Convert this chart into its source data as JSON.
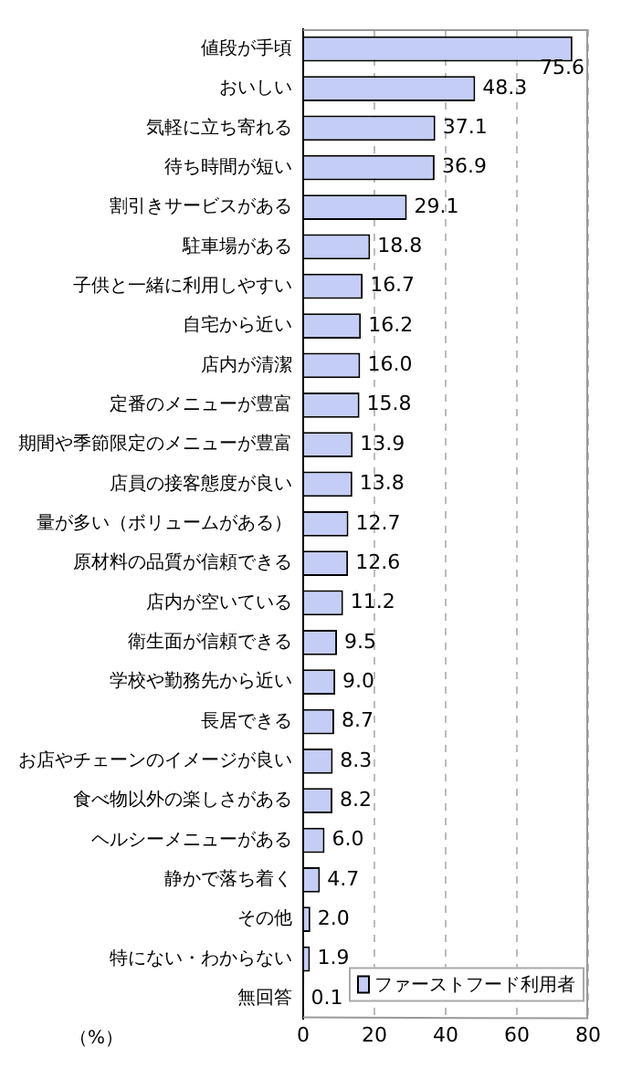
{
  "chart_data": {
    "type": "bar",
    "orientation": "horizontal",
    "xlabel": "（%）",
    "categories": [
      "値段が手頃",
      "おいしい",
      "気軽に立ち寄れる",
      "待ち時間が短い",
      "割引きサービスがある",
      "駐車場がある",
      "子供と一緒に利用しやすい",
      "自宅から近い",
      "店内が清潔",
      "定番のメニューが豊富",
      "期間や季節限定のメニューが豊富",
      "店員の接客態度が良い",
      "量が多い（ボリュームがある）",
      "原材料の品質が信頼できる",
      "店内が空いている",
      "衛生面が信頼できる",
      "学校や勤務先から近い",
      "長居できる",
      "お店やチェーンのイメージが良い",
      "食べ物以外の楽しさがある",
      "ヘルシーメニューがある",
      "静かで落ち着く",
      "その他",
      "特にない・わからない",
      "無回答"
    ],
    "series": [
      {
        "name": "ファーストフード利用者",
        "color": "#c4cdf6",
        "values": [
          75.6,
          48.3,
          37.1,
          36.9,
          29.1,
          18.8,
          16.7,
          16.2,
          16.0,
          15.8,
          13.9,
          13.8,
          12.7,
          12.6,
          11.2,
          9.5,
          9.0,
          8.7,
          8.3,
          8.2,
          6.0,
          4.7,
          2.0,
          1.9,
          0.1
        ],
        "value_labels": [
          "75.6",
          "48.3",
          "37.1",
          "36.9",
          "29.1",
          "18.8",
          "16.7",
          "16.2",
          "16.0",
          "15.8",
          "13.9",
          "13.8",
          "12.7",
          "12.6",
          "11.2",
          "9.5",
          "9.0",
          "8.7",
          "8.3",
          "8.2",
          "6.0",
          "4.7",
          "2.0",
          "1.9",
          "0.1"
        ]
      }
    ],
    "xlim": [
      0,
      80
    ],
    "xticks": [
      0,
      20,
      40,
      60,
      80
    ],
    "grid": "x",
    "legend": "bottom right"
  }
}
